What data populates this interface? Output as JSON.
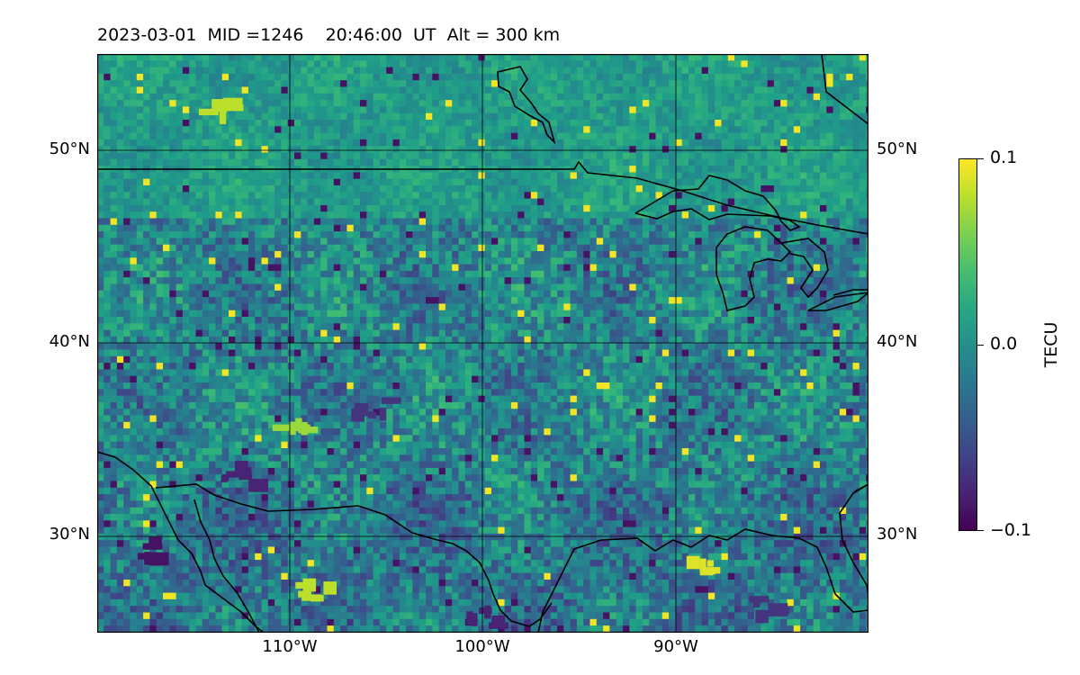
{
  "title": "2023-03-01  MID =1246    20:46:00  UT  Alt = 300 km",
  "map": {
    "type": "heatmap",
    "projection": "plate-carree",
    "lon_range": [
      -120,
      -80
    ],
    "lat_range": [
      25,
      55
    ],
    "grid_lons": [
      -110,
      -100,
      -90
    ],
    "grid_lats": [
      30,
      40,
      50
    ],
    "coastlines": true,
    "country_borders": true
  },
  "lat_labels": [
    "30°N",
    "40°N",
    "50°N"
  ],
  "lon_labels": [
    "110°W",
    "100°W",
    "90°W"
  ],
  "colorbar": {
    "label": "TECU",
    "colormap": "viridis",
    "min": -0.1,
    "max": 0.1,
    "tick_labels": [
      "0.1",
      "0.0",
      "−0.1"
    ]
  },
  "chart_data": {
    "type": "heatmap",
    "variable": "TECU",
    "vmin": -0.1,
    "vmax": 0.1,
    "x_range": [
      -120,
      -80
    ],
    "y_range": [
      25,
      55
    ],
    "notable_regions": [
      {
        "lon": -117,
        "lat": 29.5,
        "value": -0.09
      },
      {
        "lon": -113,
        "lat": 33.5,
        "value": -0.08
      },
      {
        "lon": -106,
        "lat": 37,
        "value": -0.07
      },
      {
        "lon": -114,
        "lat": 52.5,
        "value": 0.08
      },
      {
        "lon": -110,
        "lat": 36,
        "value": 0.07
      },
      {
        "lon": -109,
        "lat": 27.5,
        "value": 0.08
      },
      {
        "lon": -89,
        "lat": 28.5,
        "value": 0.09
      },
      {
        "lon": -100,
        "lat": 26,
        "value": -0.08
      },
      {
        "lon": -86,
        "lat": 26.5,
        "value": -0.07
      }
    ]
  }
}
